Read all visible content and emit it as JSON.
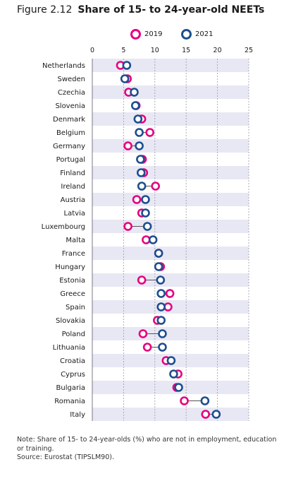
{
  "figure": {
    "number": "Figure 2.12",
    "title": "Share of 15- to 24-year-old NEETs"
  },
  "note": {
    "line1": "Note: Share of 15- to 24-year-olds (%) who are not in employment, education",
    "line2": "or training.",
    "source": "Source: Eurostat (TIPSLM90)."
  },
  "colors": {
    "y2019": "#e6007e",
    "y2021": "#1d4e8f",
    "band": "#e8e8f4"
  },
  "chart_data": {
    "type": "dumbbell",
    "series": [
      {
        "name": "2019",
        "color": "#e6007e"
      },
      {
        "name": "2021",
        "color": "#1d4e8f"
      }
    ],
    "xlim": [
      0,
      25
    ],
    "xticks": [
      0,
      5,
      10,
      15,
      20,
      25
    ],
    "legend_position": "top",
    "grid": "vertical dashed",
    "rows": [
      {
        "country": "Netherlands",
        "y2019": 4.5,
        "y2021": 5.5
      },
      {
        "country": "Sweden",
        "y2019": 5.6,
        "y2021": 5.2
      },
      {
        "country": "Czechia",
        "y2019": 5.8,
        "y2021": 6.7
      },
      {
        "country": "Slovenia",
        "y2019": 7.0,
        "y2021": 6.9
      },
      {
        "country": "Denmark",
        "y2019": 7.9,
        "y2021": 7.3
      },
      {
        "country": "Belgium",
        "y2019": 9.2,
        "y2021": 7.5
      },
      {
        "country": "Germany",
        "y2019": 5.7,
        "y2021": 7.5
      },
      {
        "country": "Portugal",
        "y2019": 8.0,
        "y2021": 7.7
      },
      {
        "country": "Finland",
        "y2019": 8.2,
        "y2021": 7.8
      },
      {
        "country": "Ireland",
        "y2019": 10.1,
        "y2021": 7.9
      },
      {
        "country": "Austria",
        "y2019": 7.1,
        "y2021": 8.5
      },
      {
        "country": "Latvia",
        "y2019": 7.9,
        "y2021": 8.5
      },
      {
        "country": "Luxembourg",
        "y2019": 5.7,
        "y2021": 8.8
      },
      {
        "country": "Malta",
        "y2019": 8.6,
        "y2021": 9.7
      },
      {
        "country": "France",
        "y2019": 10.6,
        "y2021": 10.6
      },
      {
        "country": "Hungary",
        "y2019": 10.9,
        "y2021": 10.6
      },
      {
        "country": "Estonia",
        "y2019": 7.9,
        "y2021": 10.9
      },
      {
        "country": "Greece",
        "y2019": 12.4,
        "y2021": 11.0
      },
      {
        "country": "Spain",
        "y2019": 12.1,
        "y2021": 11.0
      },
      {
        "country": "Slovakia",
        "y2019": 10.4,
        "y2021": 11.0
      },
      {
        "country": "Poland",
        "y2019": 8.1,
        "y2021": 11.2
      },
      {
        "country": "Lithuania",
        "y2019": 8.8,
        "y2021": 11.2
      },
      {
        "country": "Croatia",
        "y2019": 11.8,
        "y2021": 12.6
      },
      {
        "country": "Cyprus",
        "y2019": 13.7,
        "y2021": 13.0
      },
      {
        "country": "Bulgaria",
        "y2019": 13.5,
        "y2021": 13.8
      },
      {
        "country": "Romania",
        "y2019": 14.7,
        "y2021": 18.0
      },
      {
        "country": "Italy",
        "y2019": 18.1,
        "y2021": 19.8
      }
    ]
  }
}
